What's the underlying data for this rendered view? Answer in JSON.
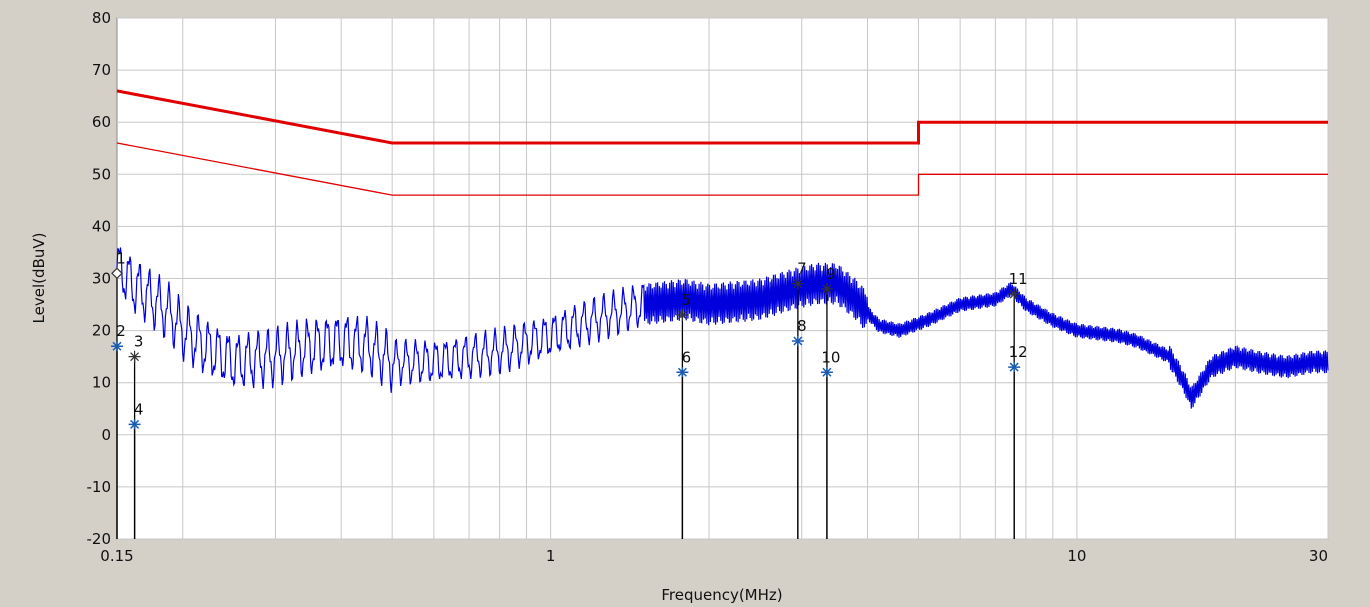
{
  "chart_data": {
    "type": "line",
    "xlabel": "Frequency(MHz)",
    "ylabel": "Level(dBuV)",
    "xscale": "log",
    "xlim": [
      0.15,
      30
    ],
    "ylim": [
      -20,
      80
    ],
    "x_ticks": [
      0.15,
      1,
      10,
      30
    ],
    "x_tick_labels": [
      "0.15",
      "1",
      "10",
      "30"
    ],
    "y_ticks": [
      -20,
      -10,
      0,
      10,
      20,
      30,
      40,
      50,
      60,
      70,
      80
    ],
    "y_tick_labels": [
      "-20",
      "-10",
      "0",
      "10",
      "20",
      "30",
      "40",
      "50",
      "60",
      "70",
      "80"
    ],
    "grid": true,
    "colors": {
      "limit": "#e00000",
      "trace": "#0000dd",
      "marker": "#000000",
      "plot_bg": "#ffffff",
      "frame_bg": "#d4d0c8",
      "grid": "#c8c8c8"
    },
    "limit_lines": [
      {
        "style": "thick",
        "points": [
          [
            0.15,
            66
          ],
          [
            0.5,
            56
          ],
          [
            5,
            56
          ],
          [
            5,
            60
          ],
          [
            30,
            60
          ]
        ]
      },
      {
        "style": "thin",
        "points": [
          [
            0.15,
            56
          ],
          [
            0.5,
            46
          ],
          [
            5,
            46
          ],
          [
            5,
            50
          ],
          [
            30,
            50
          ]
        ]
      }
    ],
    "trace": {
      "points": [
        [
          0.15,
          32
        ],
        [
          0.155,
          31
        ],
        [
          0.16,
          29
        ],
        [
          0.17,
          27
        ],
        [
          0.18,
          25
        ],
        [
          0.19,
          23
        ],
        [
          0.2,
          20
        ],
        [
          0.22,
          17
        ],
        [
          0.25,
          14
        ],
        [
          0.3,
          15
        ],
        [
          0.35,
          17
        ],
        [
          0.4,
          18
        ],
        [
          0.45,
          17
        ],
        [
          0.5,
          14
        ],
        [
          0.6,
          14
        ],
        [
          0.7,
          15
        ],
        [
          0.8,
          16
        ],
        [
          1.0,
          19
        ],
        [
          1.2,
          22
        ],
        [
          1.5,
          25
        ],
        [
          1.8,
          26
        ],
        [
          2.0,
          25
        ],
        [
          2.5,
          26
        ],
        [
          2.9,
          28
        ],
        [
          3.2,
          29
        ],
        [
          3.5,
          29
        ],
        [
          3.8,
          26
        ],
        [
          4.2,
          21
        ],
        [
          4.6,
          20
        ],
        [
          5.2,
          22
        ],
        [
          6.0,
          25
        ],
        [
          7.0,
          26
        ],
        [
          7.5,
          28
        ],
        [
          8.0,
          25
        ],
        [
          9.0,
          22
        ],
        [
          10,
          20
        ],
        [
          12,
          19
        ],
        [
          13,
          18
        ],
        [
          15,
          15
        ],
        [
          16,
          10
        ],
        [
          16.5,
          7
        ],
        [
          17,
          9
        ],
        [
          18,
          13
        ],
        [
          19,
          14
        ],
        [
          20,
          15
        ],
        [
          22,
          14
        ],
        [
          25,
          13
        ],
        [
          28,
          14
        ],
        [
          30,
          14
        ]
      ]
    },
    "markers": [
      {
        "label": "1",
        "x": 0.15,
        "y": 31,
        "symbol": "diamond"
      },
      {
        "label": "2",
        "x": 0.15,
        "y": 17,
        "symbol": "star"
      },
      {
        "label": "3",
        "x": 0.162,
        "y": 15,
        "symbol": "asterisk"
      },
      {
        "label": "4",
        "x": 0.162,
        "y": 2,
        "symbol": "star"
      },
      {
        "label": "5",
        "x": 1.78,
        "y": 23,
        "symbol": "asterisk"
      },
      {
        "label": "6",
        "x": 1.78,
        "y": 12,
        "symbol": "star"
      },
      {
        "label": "7",
        "x": 2.95,
        "y": 29,
        "symbol": "asterisk"
      },
      {
        "label": "8",
        "x": 2.95,
        "y": 18,
        "symbol": "star"
      },
      {
        "label": "9",
        "x": 3.35,
        "y": 28,
        "symbol": "asterisk"
      },
      {
        "label": "10",
        "x": 3.35,
        "y": 12,
        "symbol": "star"
      },
      {
        "label": "11",
        "x": 7.6,
        "y": 27,
        "symbol": "asterisk"
      },
      {
        "label": "12",
        "x": 7.6,
        "y": 13,
        "symbol": "star"
      }
    ]
  }
}
